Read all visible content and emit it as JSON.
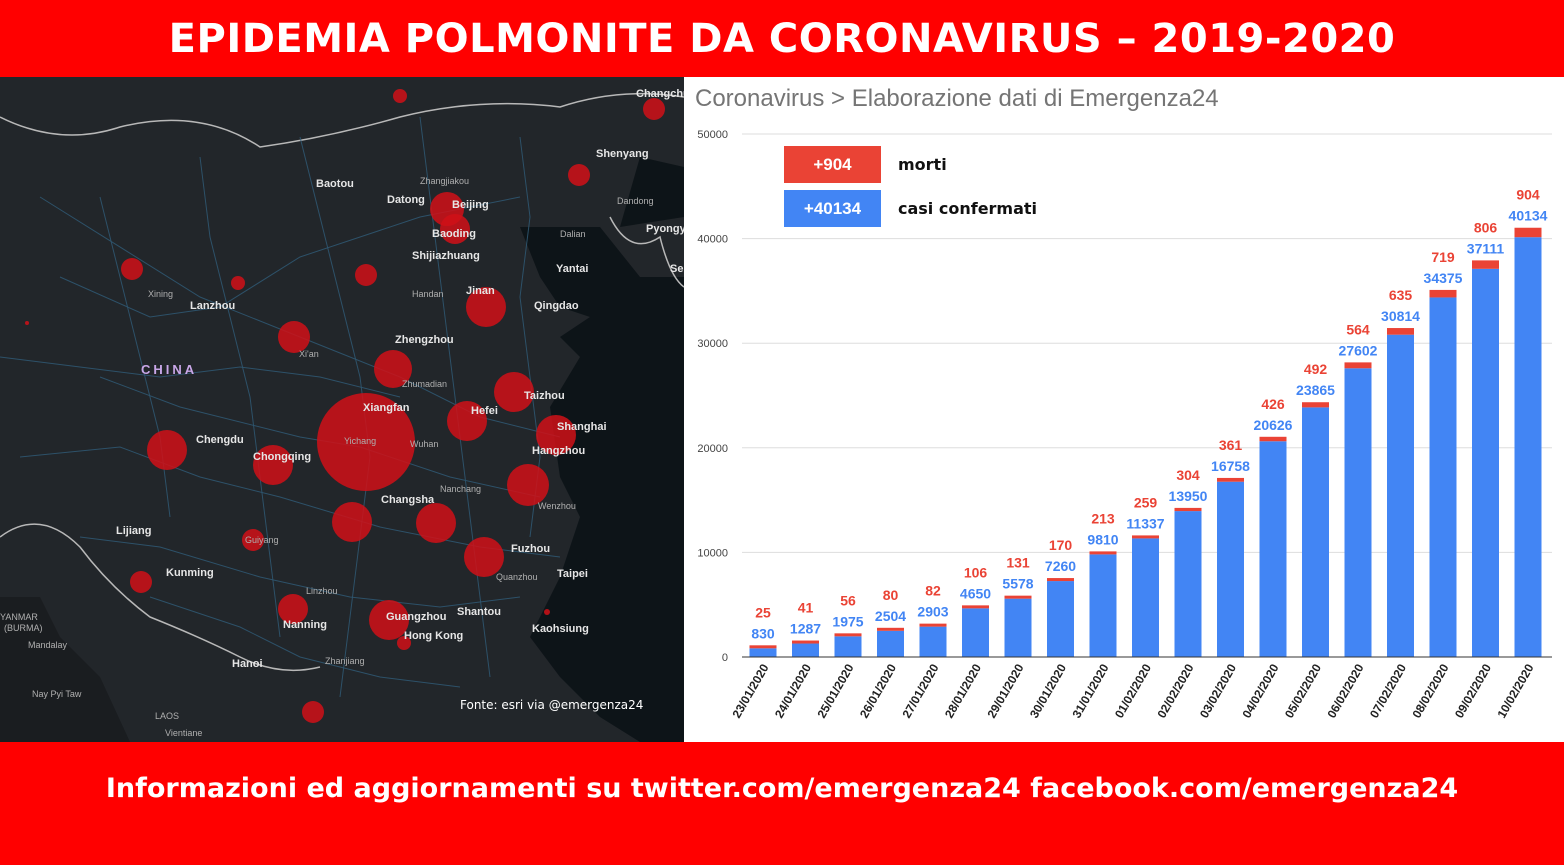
{
  "header": {
    "title": "EPIDEMIA POLMONITE DA CORONAVIRUS – 2019-2020"
  },
  "footer": {
    "text": "Informazioni ed aggiornamenti su twitter.com/emergenza24  facebook.com/emergenza24"
  },
  "map": {
    "source": "Fonte: esri via @emergenza24",
    "country_label": "CHINA",
    "colors": {
      "background": "#22262a",
      "water": "#0d1418",
      "roads": "#2f5670",
      "bubble": "#d01018"
    },
    "places": [
      "Changchun",
      "Shenyang",
      "Baotou",
      "Zhangjiakou",
      "Datong",
      "Beijing",
      "Baoding",
      "Dandong",
      "Pyongy",
      "Dalian",
      "Shijiazhuang",
      "Yantai",
      "Xining",
      "Lanzhou",
      "Handan",
      "Jinan",
      "Qingdao",
      "Zhengzhou",
      "Xi'an",
      "Zhumadian",
      "Xiangfan",
      "Taizhou",
      "Chengdu",
      "Hefei",
      "Yichang",
      "Wuhan",
      "Shanghai",
      "Hangzhou",
      "Chongqing",
      "Nanchang",
      "Changsha",
      "Wenzhou",
      "Guiyang",
      "Lijiang",
      "Fuzhou",
      "Kunming",
      "Quanzhou",
      "Taipei",
      "Linzhou",
      "Nanning",
      "Guangzhou",
      "Shantou",
      "Hong Kong",
      "Kaohsiung",
      "Hanoi",
      "Zhanjiang",
      "Mandalay",
      "Nay Pyi Taw",
      "LAOS",
      "Vientiane",
      "YANMAR",
      "(BURMA)",
      "Se"
    ]
  },
  "chart": {
    "title": "Coronavirus > Elaborazione dati di Emergenza24",
    "legend": [
      {
        "value": "+904",
        "label": "morti",
        "color": "#ea4335"
      },
      {
        "value": "+40134",
        "label": "casi confermati",
        "color": "#4285f4"
      }
    ]
  },
  "chart_data": {
    "type": "bar",
    "stacked": true,
    "categories": [
      "23/01/2020",
      "24/01/2020",
      "25/01/2020",
      "26/01/2020",
      "27/01/2020",
      "28/01/2020",
      "29/01/2020",
      "30/01/2020",
      "31/01/2020",
      "01/02/2020",
      "02/02/2020",
      "03/02/2020",
      "04/02/2020",
      "05/02/2020",
      "06/02/2020",
      "07/02/2020",
      "08/02/2020",
      "09/02/2020",
      "10/02/2020"
    ],
    "series": [
      {
        "name": "casi confermati",
        "color": "#4285f4",
        "values": [
          830,
          1287,
          1975,
          2504,
          2903,
          4650,
          5578,
          7260,
          9810,
          11337,
          13950,
          16758,
          20626,
          23865,
          27602,
          30814,
          34375,
          37111,
          40134
        ]
      },
      {
        "name": "morti",
        "color": "#ea4335",
        "values": [
          25,
          41,
          56,
          80,
          82,
          106,
          131,
          170,
          213,
          259,
          304,
          361,
          426,
          492,
          564,
          635,
          719,
          806,
          904
        ]
      }
    ],
    "ylim": [
      0,
      50000
    ],
    "yticks": [
      "0",
      "10000",
      "20000",
      "30000",
      "40000",
      "50000"
    ],
    "grid": true,
    "legend_position": "top-left"
  }
}
